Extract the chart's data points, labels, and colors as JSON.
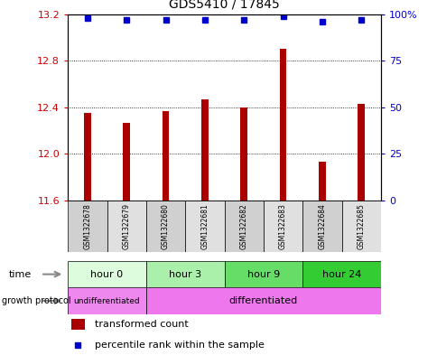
{
  "title": "GDS5410 / 17845",
  "samples": [
    "GSM1322678",
    "GSM1322679",
    "GSM1322680",
    "GSM1322681",
    "GSM1322682",
    "GSM1322683",
    "GSM1322684",
    "GSM1322685"
  ],
  "bar_values": [
    12.35,
    12.27,
    12.37,
    12.47,
    12.4,
    12.9,
    11.93,
    12.43
  ],
  "percentile_values": [
    98,
    97,
    97,
    97,
    97,
    99,
    96,
    97
  ],
  "ylim": [
    11.6,
    13.2
  ],
  "yticks": [
    11.6,
    12.0,
    12.4,
    12.8,
    13.2
  ],
  "right_yticks": [
    0,
    25,
    50,
    75,
    100
  ],
  "bar_color": "#AA0000",
  "dot_color": "#0000CC",
  "background_color": "#ffffff",
  "time_groups": [
    {
      "label": "hour 0",
      "start": 0,
      "end": 2,
      "color": "#ddfcdd"
    },
    {
      "label": "hour 3",
      "start": 2,
      "end": 4,
      "color": "#aaf0aa"
    },
    {
      "label": "hour 9",
      "start": 4,
      "end": 6,
      "color": "#66dd66"
    },
    {
      "label": "hour 24",
      "start": 6,
      "end": 8,
      "color": "#33cc33"
    }
  ],
  "protocol_groups": [
    {
      "label": "undifferentiated",
      "start": 0,
      "end": 2,
      "color": "#ee88ee"
    },
    {
      "label": "differentiated",
      "start": 2,
      "end": 8,
      "color": "#ee77ee"
    }
  ],
  "legend_bar_label": "transformed count",
  "legend_dot_label": "percentile rank within the sample"
}
